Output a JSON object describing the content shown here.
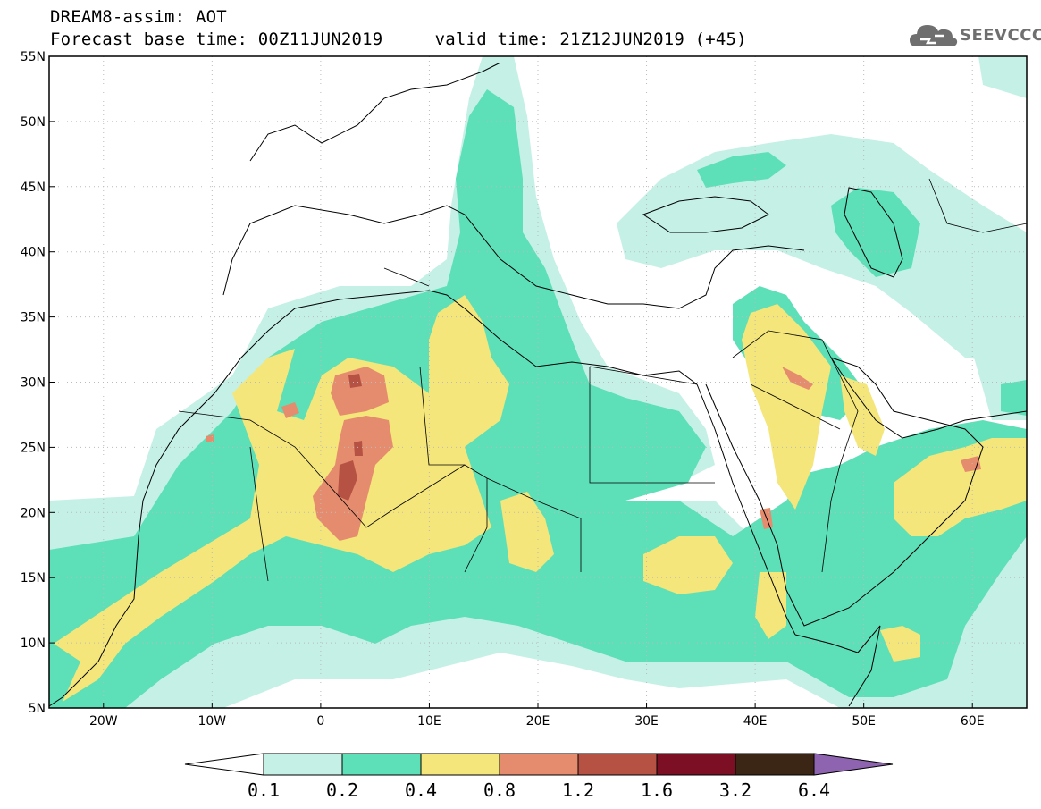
{
  "header": {
    "title_line1": "DREAM8-assim: AOT",
    "forecast_base_time": "Forecast base time: 00Z11JUN2019",
    "valid_time": "valid time: 21Z12JUN2019 (+45)"
  },
  "logo": {
    "text": "SEEVCCC",
    "icon": "cloud-icon"
  },
  "map": {
    "lon_range": [
      -25,
      65
    ],
    "lat_range": [
      5,
      55
    ],
    "lat_labels": [
      {
        "lat": 55,
        "label": "55N"
      },
      {
        "lat": 50,
        "label": "50N"
      },
      {
        "lat": 45,
        "label": "45N"
      },
      {
        "lat": 40,
        "label": "40N"
      },
      {
        "lat": 35,
        "label": "35N"
      },
      {
        "lat": 30,
        "label": "30N"
      },
      {
        "lat": 25,
        "label": "25N"
      },
      {
        "lat": 20,
        "label": "20N"
      },
      {
        "lat": 15,
        "label": "15N"
      },
      {
        "lat": 10,
        "label": "10N"
      },
      {
        "lat": 5,
        "label": "5N"
      }
    ],
    "lon_labels": [
      {
        "lon": -20,
        "label": "20W"
      },
      {
        "lon": -10,
        "label": "10W"
      },
      {
        "lon": 0,
        "label": "0"
      },
      {
        "lon": 10,
        "label": "10E"
      },
      {
        "lon": 20,
        "label": "20E"
      },
      {
        "lon": 30,
        "label": "30E"
      },
      {
        "lon": 40,
        "label": "40E"
      },
      {
        "lon": 50,
        "label": "50E"
      },
      {
        "lon": 60,
        "label": "60E"
      }
    ],
    "grid_dotted": true
  },
  "colorbar": {
    "levels": [
      "0.1",
      "0.2",
      "0.4",
      "0.8",
      "1.2",
      "1.6",
      "3.2",
      "6.4"
    ],
    "colors": [
      "#ffffff",
      "#c5f0e6",
      "#5ddfb7",
      "#f4e67a",
      "#e58c6e",
      "#b65244",
      "#7d0f25",
      "#3b2616",
      "#8e64b0"
    ]
  },
  "colors": {
    "cls1": "#c5f0e6",
    "cls2": "#5ddfb7",
    "cls3": "#f4e67a",
    "cls4": "#e58c6e",
    "cls5": "#b65244",
    "cls6": "#7d0f25"
  }
}
